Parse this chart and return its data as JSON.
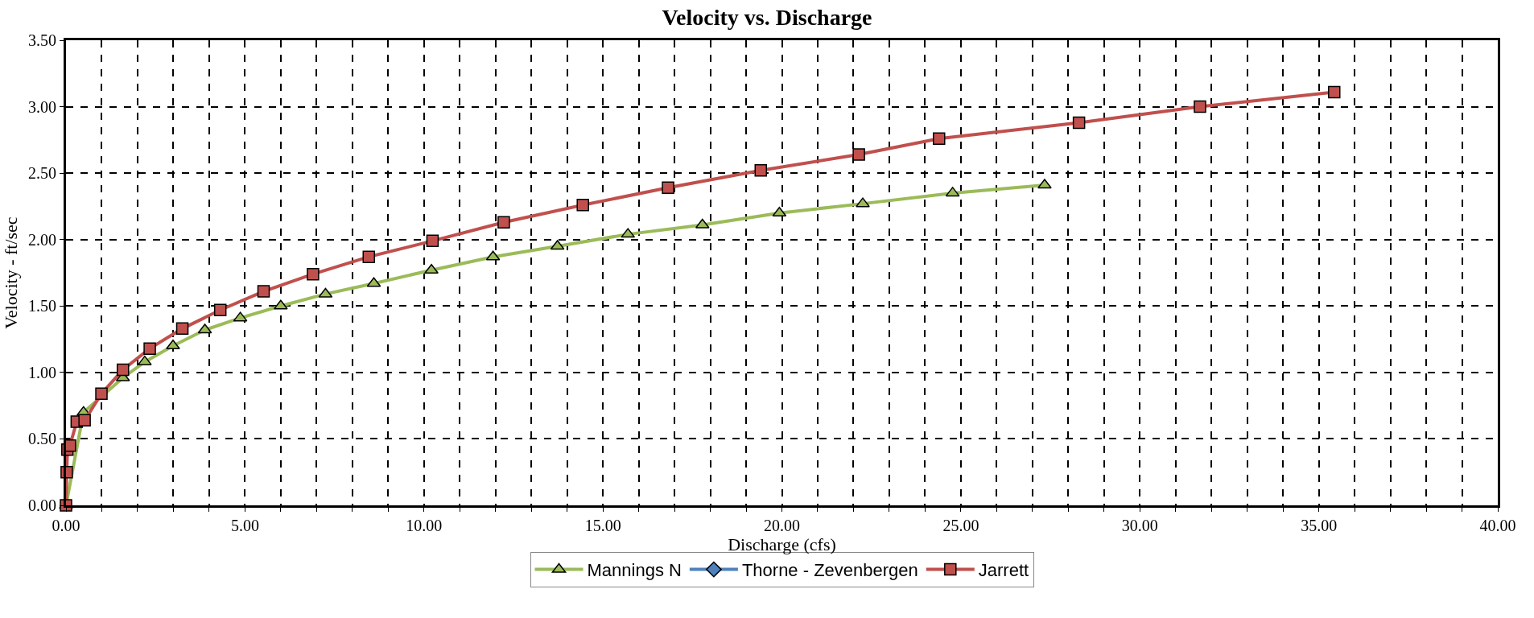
{
  "chart_data": {
    "type": "line",
    "title": "Velocity vs. Discharge",
    "xlabel": "Discharge (cfs)",
    "ylabel": "Velocity - ft/sec",
    "xlim": [
      0,
      40
    ],
    "ylim": [
      0,
      3.5
    ],
    "xticks": [
      {
        "value": 0,
        "label": "0.00"
      },
      {
        "value": 1,
        "label": null
      },
      {
        "value": 2,
        "label": null
      },
      {
        "value": 3,
        "label": null
      },
      {
        "value": 4,
        "label": null
      },
      {
        "value": 5,
        "label": "5.00"
      },
      {
        "value": 6,
        "label": null
      },
      {
        "value": 7,
        "label": null
      },
      {
        "value": 8,
        "label": null
      },
      {
        "value": 9,
        "label": null
      },
      {
        "value": 10,
        "label": "10.00"
      },
      {
        "value": 11,
        "label": null
      },
      {
        "value": 12,
        "label": null
      },
      {
        "value": 13,
        "label": null
      },
      {
        "value": 14,
        "label": null
      },
      {
        "value": 15,
        "label": "15.00"
      },
      {
        "value": 16,
        "label": null
      },
      {
        "value": 17,
        "label": null
      },
      {
        "value": 18,
        "label": null
      },
      {
        "value": 19,
        "label": null
      },
      {
        "value": 20,
        "label": "20.00"
      },
      {
        "value": 21,
        "label": null
      },
      {
        "value": 22,
        "label": null
      },
      {
        "value": 23,
        "label": null
      },
      {
        "value": 24,
        "label": null
      },
      {
        "value": 25,
        "label": "25.00"
      },
      {
        "value": 26,
        "label": null
      },
      {
        "value": 27,
        "label": null
      },
      {
        "value": 28,
        "label": null
      },
      {
        "value": 29,
        "label": null
      },
      {
        "value": 30,
        "label": "30.00"
      },
      {
        "value": 31,
        "label": null
      },
      {
        "value": 32,
        "label": null
      },
      {
        "value": 33,
        "label": null
      },
      {
        "value": 34,
        "label": null
      },
      {
        "value": 35,
        "label": "35.00"
      },
      {
        "value": 36,
        "label": null
      },
      {
        "value": 37,
        "label": null
      },
      {
        "value": 38,
        "label": null
      },
      {
        "value": 39,
        "label": null
      },
      {
        "value": 40,
        "label": "40.00"
      }
    ],
    "yticks": [
      {
        "value": 0,
        "label": "0.00"
      },
      {
        "value": 0.5,
        "label": "0.50"
      },
      {
        "value": 1,
        "label": "1.00"
      },
      {
        "value": 1.5,
        "label": "1.50"
      },
      {
        "value": 2,
        "label": "2.00"
      },
      {
        "value": 2.5,
        "label": "2.50"
      },
      {
        "value": 3,
        "label": "3.00"
      },
      {
        "value": 3.5,
        "label": "3.50"
      }
    ],
    "grid": true,
    "legend": "bottom",
    "line_style": "solid",
    "series": [
      {
        "name": "Mannings N",
        "color": "#9bbb59",
        "marker": "triangle",
        "x": [
          0,
          0.49,
          1.59,
          2.2,
          2.99,
          3.88,
          4.87,
          6.0,
          7.25,
          8.6,
          10.21,
          11.93,
          13.73,
          15.7,
          17.78,
          19.93,
          22.26,
          24.77,
          27.34
        ],
        "values": [
          0,
          0.7,
          0.96,
          1.08,
          1.2,
          1.32,
          1.41,
          1.5,
          1.59,
          1.67,
          1.77,
          1.87,
          1.95,
          2.04,
          2.11,
          2.2,
          2.27,
          2.35,
          2.41
        ]
      },
      {
        "name": "Thorne - Zevenbergen",
        "color": "#4f81bd",
        "marker": "diamond",
        "values": [
          null
        ]
      },
      {
        "name": "Jarrett",
        "color": "#c0504d",
        "marker": "square",
        "x": [
          0,
          0.02,
          0.04,
          0.11,
          0.3,
          0.52,
          0.99,
          1.59,
          2.34,
          3.25,
          4.31,
          5.52,
          6.9,
          8.46,
          10.24,
          12.23,
          14.44,
          16.82,
          19.41,
          22.15,
          24.39,
          28.3,
          31.68,
          35.43
        ],
        "values": [
          0,
          0.25,
          0.42,
          0.45,
          0.63,
          0.64,
          0.84,
          1.02,
          1.18,
          1.33,
          1.47,
          1.61,
          1.74,
          1.87,
          1.99,
          2.13,
          2.26,
          2.39,
          2.52,
          2.64,
          2.76,
          2.88,
          3.0,
          3.11
        ]
      }
    ]
  }
}
